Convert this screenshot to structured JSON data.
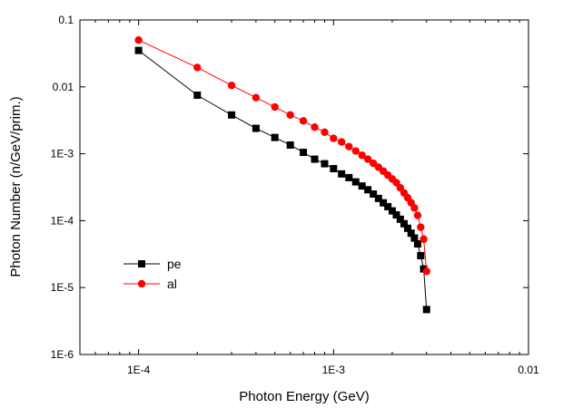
{
  "chart_data": {
    "type": "line",
    "title": "",
    "xlabel": "Photon Energy (GeV)",
    "ylabel": "Photon Number (n/GeV/prim.)",
    "xscale": "log",
    "yscale": "log",
    "xlim": [
      5e-05,
      0.01
    ],
    "ylim": [
      1e-06,
      0.1
    ],
    "x_ticks": [
      {
        "value": 0.0001,
        "label": "1E-4"
      },
      {
        "value": 0.001,
        "label": "1E-3"
      },
      {
        "value": 0.01,
        "label": "0.01"
      }
    ],
    "y_ticks": [
      {
        "value": 0.1,
        "label": "0.1"
      },
      {
        "value": 0.01,
        "label": "0.01"
      },
      {
        "value": 0.001,
        "label": "1E-3"
      },
      {
        "value": 0.0001,
        "label": "1E-4"
      },
      {
        "value": 1e-05,
        "label": "1E-5"
      },
      {
        "value": 1e-06,
        "label": "1E-6"
      }
    ],
    "grid": false,
    "legend_position": "lower-left",
    "series": [
      {
        "name": "pe",
        "color": "#000000",
        "marker": "square",
        "x": [
          0.0001,
          0.0002,
          0.0003,
          0.0004,
          0.0005,
          0.0006,
          0.0007,
          0.0008,
          0.0009,
          0.001,
          0.0011,
          0.0012,
          0.0013,
          0.0014,
          0.0015,
          0.0016,
          0.0017,
          0.0018,
          0.0019,
          0.002,
          0.0021,
          0.0022,
          0.0023,
          0.0024,
          0.0025,
          0.0026,
          0.0027,
          0.0028,
          0.0029,
          0.003
        ],
        "y": [
          0.035,
          0.0075,
          0.0038,
          0.0024,
          0.00175,
          0.00135,
          0.00105,
          0.00083,
          0.00071,
          0.0006,
          0.0005,
          0.00044,
          0.00038,
          0.00033,
          0.00029,
          0.00025,
          0.000215,
          0.000185,
          0.000162,
          0.00014,
          0.000122,
          0.000105,
          9e-05,
          7.7e-05,
          6.5e-05,
          5.5e-05,
          4.5e-05,
          3e-05,
          1.9e-05,
          4.7e-06
        ]
      },
      {
        "name": "al",
        "color": "#ff0000",
        "marker": "circle",
        "x": [
          0.0001,
          0.0002,
          0.0003,
          0.0004,
          0.0005,
          0.0006,
          0.0007,
          0.0008,
          0.0009,
          0.001,
          0.0011,
          0.0012,
          0.0013,
          0.0014,
          0.0015,
          0.0016,
          0.0017,
          0.0018,
          0.0019,
          0.002,
          0.0021,
          0.0022,
          0.0023,
          0.0024,
          0.0025,
          0.0026,
          0.0027,
          0.0028,
          0.0029,
          0.003
        ],
        "y": [
          0.05,
          0.0195,
          0.0105,
          0.0069,
          0.005,
          0.0038,
          0.0031,
          0.0025,
          0.0021,
          0.0017,
          0.0015,
          0.00128,
          0.0011,
          0.00095,
          0.00083,
          0.00072,
          0.00063,
          0.00055,
          0.00048,
          0.00042,
          0.00037,
          0.00031,
          0.00026,
          0.00022,
          0.000185,
          0.000155,
          0.00012,
          8e-05,
          5.3e-05,
          1.75e-05
        ]
      }
    ]
  }
}
